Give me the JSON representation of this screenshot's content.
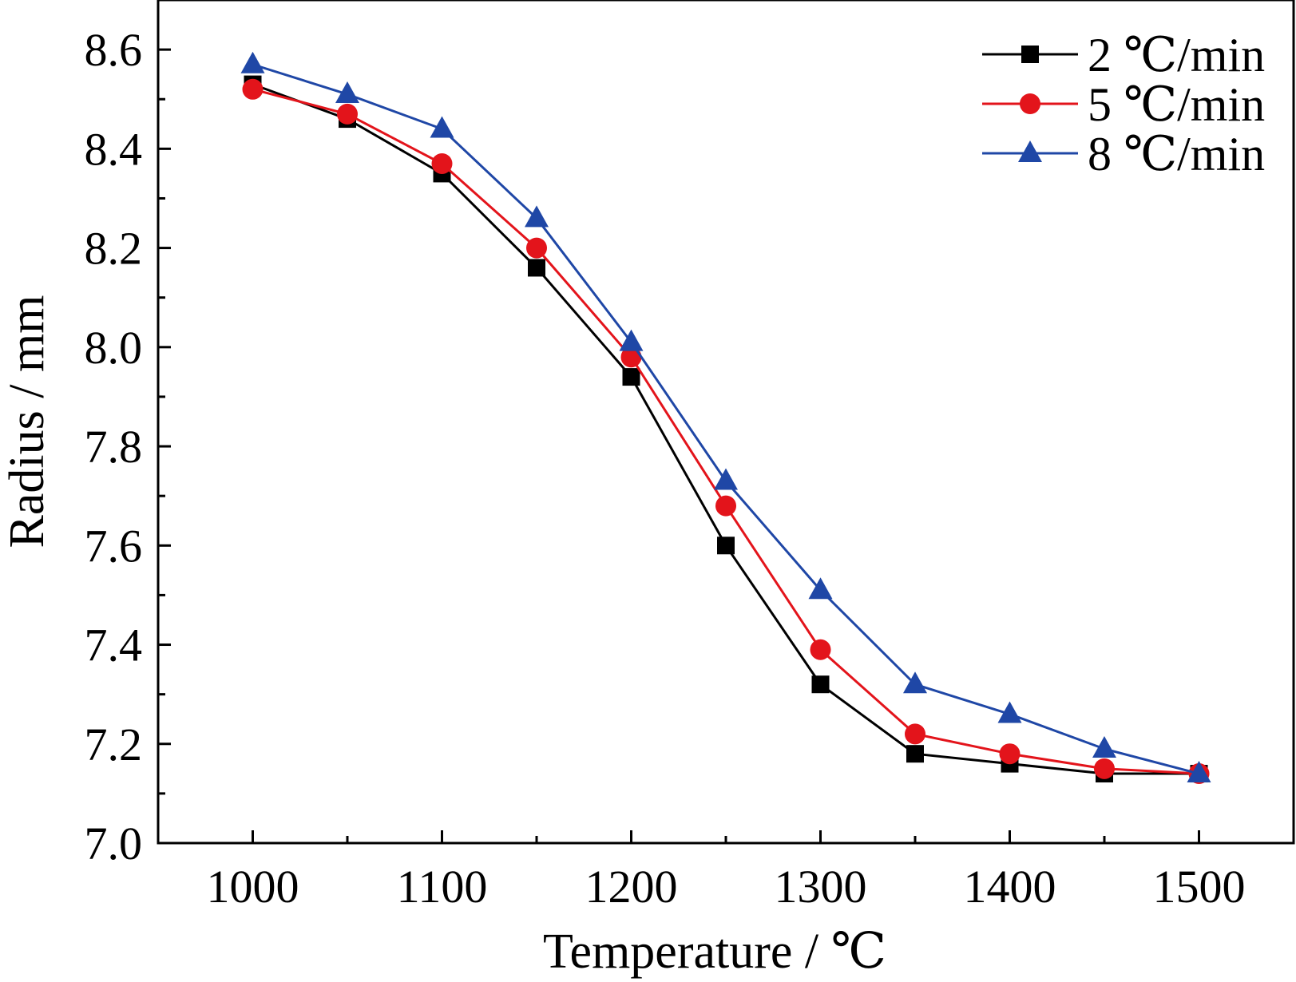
{
  "chart_data": {
    "type": "line",
    "xlabel": "Temperature / ℃",
    "ylabel": "Radius / mm",
    "xlim": [
      950,
      1550
    ],
    "ylim": [
      7.0,
      8.7
    ],
    "x_ticks": [
      "1000",
      "1100",
      "1200",
      "1300",
      "1400",
      "1500"
    ],
    "y_ticks": [
      "7.0",
      "7.2",
      "7.4",
      "7.6",
      "7.8",
      "8.0",
      "8.2",
      "8.4",
      "8.6"
    ],
    "x_tick_values": [
      1000,
      1100,
      1200,
      1300,
      1400,
      1500
    ],
    "y_tick_values": [
      7.0,
      7.2,
      7.4,
      7.6,
      7.8,
      8.0,
      8.2,
      8.4,
      8.6
    ],
    "legend_position": "top-right",
    "x": [
      1000,
      1050,
      1100,
      1150,
      1200,
      1250,
      1300,
      1350,
      1400,
      1450,
      1500
    ],
    "series": [
      {
        "name": "2 ℃/min",
        "color": "#000000",
        "marker": "square",
        "values": [
          8.53,
          8.46,
          8.35,
          8.16,
          7.94,
          7.6,
          7.32,
          7.18,
          7.16,
          7.14,
          7.14
        ]
      },
      {
        "name": "5 ℃/min",
        "color": "#e3141b",
        "marker": "circle",
        "values": [
          8.52,
          8.47,
          8.37,
          8.2,
          7.98,
          7.68,
          7.39,
          7.22,
          7.18,
          7.15,
          7.14
        ]
      },
      {
        "name": "8 ℃/min",
        "color": "#1f47a6",
        "marker": "triangle",
        "values": [
          8.57,
          8.51,
          8.44,
          8.26,
          8.01,
          7.73,
          7.51,
          7.32,
          7.26,
          7.19,
          7.14
        ]
      }
    ]
  }
}
